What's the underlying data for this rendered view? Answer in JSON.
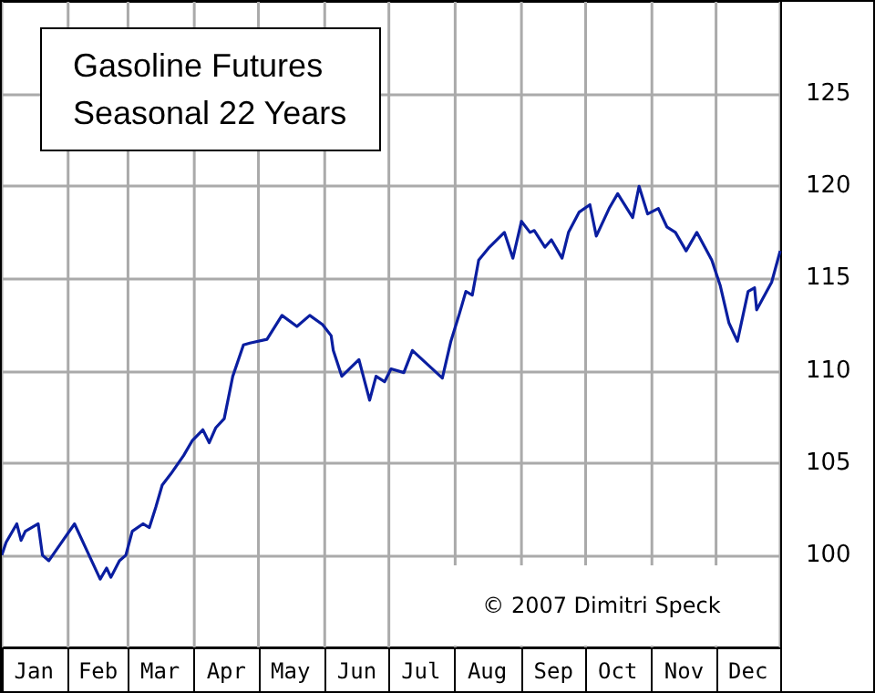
{
  "chart_data": {
    "type": "line",
    "title": "Gasoline Futures",
    "subtitle": "Seasonal 22 Years",
    "annotations": [
      "© 2007  Dimitri Speck"
    ],
    "x": [
      "--01-01",
      "--01-03",
      "--01-08",
      "--01-10",
      "--01-12",
      "--01-18",
      "--01-20",
      "--01-23",
      "--01-29",
      "--02-04",
      "--02-10",
      "--02-16",
      "--02-19",
      "--02-21",
      "--02-25",
      "--02-28",
      "--03-03",
      "--03-08",
      "--03-11",
      "--03-14",
      "--03-17",
      "--03-21",
      "--03-27",
      "--03-31",
      "--04-05",
      "--04-08",
      "--04-11",
      "--04-15",
      "--04-19",
      "--04-24",
      "--04-27",
      "--05-05",
      "--05-12",
      "--05-19",
      "--05-25",
      "--05-31",
      "--06-04",
      "--06-05",
      "--06-09",
      "--06-17",
      "--06-22",
      "--06-25",
      "--06-29",
      "--07-02",
      "--07-08",
      "--07-12",
      "--07-26",
      "--07-30",
      "--08-03",
      "--08-06",
      "--08-09",
      "--08-12",
      "--08-17",
      "--08-24",
      "--08-28",
      "--09-01",
      "--09-05",
      "--09-07",
      "--09-12",
      "--09-15",
      "--09-20",
      "--09-23",
      "--09-28",
      "--10-03",
      "--10-06",
      "--10-12",
      "--10-16",
      "--10-23",
      "--10-26",
      "--10-30",
      "--11-04",
      "--11-08",
      "--11-12",
      "--11-17",
      "--11-22",
      "--11-29",
      "--12-03",
      "--12-07",
      "--12-11",
      "--12-16",
      "--12-19",
      "--12-20",
      "--12-27",
      "--12-31"
    ],
    "series": [
      {
        "color": "#0a1ea0",
        "values": [
          100,
          100.7,
          101.7,
          100.8,
          101.3,
          101.7,
          100,
          99.7,
          100.7,
          101.7,
          100.2,
          98.7,
          99.3,
          98.8,
          99.7,
          100,
          101.3,
          101.7,
          101.5,
          102.6,
          103.8,
          104.4,
          105.4,
          106.2,
          106.8,
          106.1,
          106.9,
          107.4,
          109.7,
          111.4,
          111.5,
          111.7,
          113,
          112.4,
          113,
          112.5,
          111.9,
          111.1,
          109.7,
          110.6,
          108.4,
          109.7,
          109.4,
          110.1,
          109.9,
          111.1,
          109.6,
          111.6,
          113.1,
          114.3,
          114.1,
          116,
          116.7,
          117.5,
          116.1,
          118.1,
          117.5,
          117.6,
          116.7,
          117.1,
          116.1,
          117.5,
          118.6,
          119,
          117.3,
          118.8,
          119.6,
          118.3,
          120,
          118.5,
          118.8,
          117.8,
          117.5,
          116.5,
          117.5,
          116,
          114.6,
          112.6,
          111.6,
          114.3,
          114.5,
          113.3,
          114.8,
          116.5
        ]
      }
    ],
    "xlim": [
      "--01-01",
      "--12-31"
    ],
    "xticks": [
      {
        "value": "--01-01",
        "label": null
      },
      {
        "value": "--01-16",
        "label": "Jan"
      },
      {
        "value": "--02-01",
        "label": null
      },
      {
        "value": "--02-15",
        "label": "Feb"
      },
      {
        "value": "--03-01",
        "label": null
      },
      {
        "value": "--03-16",
        "label": "Mar"
      },
      {
        "value": "--04-01",
        "label": null
      },
      {
        "value": "--04-16",
        "label": "Apr"
      },
      {
        "value": "--05-01",
        "label": null
      },
      {
        "value": "--05-16",
        "label": "May"
      },
      {
        "value": "--06-01",
        "label": null
      },
      {
        "value": "--06-16",
        "label": "Jun"
      },
      {
        "value": "--07-01",
        "label": null
      },
      {
        "value": "--07-16",
        "label": "Jul"
      },
      {
        "value": "--08-01",
        "label": null
      },
      {
        "value": "--08-16",
        "label": "Aug"
      },
      {
        "value": "--09-01",
        "label": null
      },
      {
        "value": "--09-16",
        "label": "Sep"
      },
      {
        "value": "--10-01",
        "label": null
      },
      {
        "value": "--10-16",
        "label": "Oct"
      },
      {
        "value": "--11-01",
        "label": null
      },
      {
        "value": "--11-16",
        "label": "Nov"
      },
      {
        "value": "--12-01",
        "label": null
      },
      {
        "value": "--12-16",
        "label": "Dec"
      },
      {
        "value": "--12-31",
        "label": null
      }
    ],
    "ylim": [
      95,
      130
    ],
    "yticks": [
      100,
      105,
      110,
      115,
      120,
      125
    ],
    "grid": true,
    "marker": "none",
    "line_style": "solid"
  }
}
